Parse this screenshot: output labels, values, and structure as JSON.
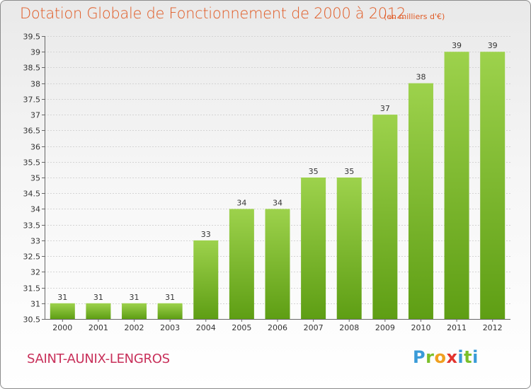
{
  "header": {
    "title": "Dotation Globale de Fonctionnement de 2000 à 2012",
    "subtitle": "(en milliers d'€)"
  },
  "footer": {
    "commune": "SAINT-AUNIX-LENGROS",
    "logo_text": "Proxiti"
  },
  "colors": {
    "title": "#e05a24",
    "commune": "#c8305a",
    "bar_top": "#9dd24c",
    "bar_bottom": "#5e9e14"
  },
  "chart_data": {
    "type": "bar",
    "title": "Dotation Globale de Fonctionnement de 2000 à 2012",
    "subtitle": "(en milliers d'€)",
    "xlabel": "",
    "ylabel": "",
    "categories": [
      "2000",
      "2001",
      "2002",
      "2003",
      "2004",
      "2005",
      "2006",
      "2007",
      "2008",
      "2009",
      "2010",
      "2011",
      "2012"
    ],
    "values": [
      31,
      31,
      31,
      31,
      33,
      34,
      34,
      35,
      35,
      37,
      38,
      39,
      39
    ],
    "ylim": [
      30.5,
      39.5
    ],
    "yticks": [
      "30.5",
      "31",
      "31.5",
      "32",
      "32.5",
      "33",
      "33.5",
      "34",
      "34.5",
      "35",
      "35.5",
      "36",
      "36.5",
      "37",
      "37.5",
      "38",
      "38.5",
      "39",
      "39.5"
    ],
    "grid": true,
    "legend": "none"
  }
}
